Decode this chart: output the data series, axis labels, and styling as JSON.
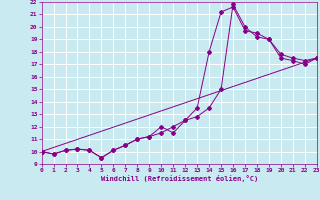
{
  "xlabel": "Windchill (Refroidissement éolien,°C)",
  "bg_color": "#c8eaf0",
  "line_color": "#880088",
  "grid_color": "#ffffff",
  "xmin": 0,
  "xmax": 23,
  "ymin": 9,
  "ymax": 22,
  "series1_x": [
    0,
    1,
    2,
    3,
    4,
    5,
    6,
    7,
    8,
    9,
    10,
    11,
    12,
    13,
    14,
    15,
    16,
    17,
    18,
    19,
    20,
    21,
    22,
    23
  ],
  "series1_y": [
    10.0,
    9.8,
    10.1,
    10.2,
    10.1,
    9.5,
    10.1,
    10.5,
    11.0,
    11.2,
    11.5,
    12.0,
    12.5,
    13.5,
    18.0,
    21.2,
    21.6,
    19.7,
    19.5,
    19.0,
    17.8,
    17.5,
    17.3,
    17.5
  ],
  "series2_x": [
    0,
    1,
    2,
    3,
    4,
    5,
    6,
    7,
    8,
    9,
    10,
    11,
    12,
    13,
    14,
    15,
    16,
    17,
    18,
    19,
    20,
    21,
    22,
    23
  ],
  "series2_y": [
    10.0,
    9.8,
    10.1,
    10.2,
    10.1,
    9.5,
    10.1,
    10.5,
    11.0,
    11.2,
    12.0,
    11.5,
    12.5,
    12.8,
    13.5,
    15.0,
    21.8,
    20.0,
    19.2,
    19.0,
    17.5,
    17.3,
    17.0,
    17.5
  ],
  "series3_x": [
    0,
    23
  ],
  "series3_y": [
    10.0,
    17.5
  ]
}
